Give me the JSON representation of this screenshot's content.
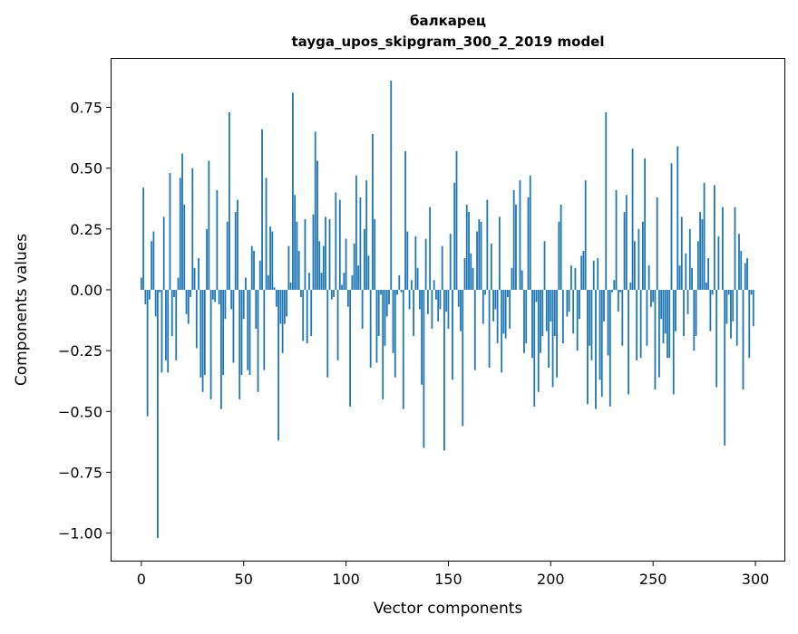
{
  "chart_data": {
    "type": "bar",
    "title": "балкарец",
    "subtitle": "tayga_upos_skipgram_300_2_2019 model",
    "xlabel": "Vector components",
    "ylabel": "Components values",
    "xlim": [
      -15,
      314.6
    ],
    "ylim": [
      -1.117,
      0.953
    ],
    "xticks": [
      0,
      50,
      100,
      150,
      200,
      250,
      300
    ],
    "xtick_labels": [
      "0",
      "50",
      "100",
      "150",
      "200",
      "250",
      "300"
    ],
    "yticks": [
      -1.0,
      -0.75,
      -0.5,
      -0.25,
      0.0,
      0.25,
      0.5,
      0.75
    ],
    "ytick_labels": [
      "−1.00",
      "−0.75",
      "−0.50",
      "−0.25",
      "0.00",
      "0.25",
      "0.50",
      "0.75"
    ],
    "grid": false,
    "bar_color": "#1f77b4",
    "bar_width": 0.8,
    "values": [
      0.05,
      0.42,
      -0.06,
      -0.52,
      -0.04,
      0.2,
      0.24,
      -0.11,
      -1.02,
      -0.01,
      -0.34,
      0.3,
      -0.29,
      -0.34,
      0.48,
      -0.19,
      -0.03,
      -0.29,
      0.05,
      0.46,
      0.56,
      0.35,
      -0.1,
      -0.14,
      -0.03,
      0.5,
      0.09,
      -0.24,
      0.13,
      -0.36,
      -0.42,
      -0.35,
      0.25,
      0.53,
      -0.45,
      -0.04,
      -0.05,
      0.41,
      -0.06,
      -0.49,
      -0.35,
      -0.12,
      0.28,
      0.73,
      -0.08,
      -0.3,
      0.32,
      0.37,
      -0.45,
      -0.35,
      -0.12,
      0.05,
      -0.33,
      -0.35,
      0.18,
      0.16,
      -0.16,
      -0.42,
      0.12,
      0.66,
      -0.33,
      0.46,
      0.06,
      0.26,
      0.24,
      0.01,
      -0.07,
      -0.62,
      -0.14,
      -0.26,
      -0.14,
      -0.11,
      0.18,
      0.03,
      0.81,
      0.39,
      0.28,
      0.16,
      -0.03,
      -0.21,
      0.29,
      -0.22,
      0.07,
      -0.19,
      0.31,
      0.65,
      0.53,
      0.2,
      0.07,
      0.18,
      0.3,
      -0.36,
      0.29,
      -0.04,
      -0.03,
      0.4,
      -0.29,
      0.37,
      0.02,
      0.07,
      0.21,
      -0.07,
      -0.48,
      0.06,
      0.19,
      0.47,
      0.1,
      0.38,
      -0.16,
      0.25,
      0.45,
      0.14,
      -0.32,
      0.64,
      0.29,
      -0.3,
      -0.19,
      -0.02,
      -0.45,
      -0.23,
      -0.11,
      -0.06,
      0.86,
      -0.26,
      -0.36,
      -0.02,
      0.06,
      -0.01,
      -0.49,
      0.57,
      0.24,
      -0.08,
      0.04,
      -0.19,
      0.22,
      0.09,
      -0.08,
      -0.39,
      -0.65,
      0.21,
      -0.1,
      0.34,
      -0.16,
      0.04,
      -0.04,
      -0.13,
      -0.08,
      0.18,
      -0.66,
      -0.09,
      -0.16,
      0.23,
      -0.37,
      0.44,
      0.57,
      -0.07,
      -0.17,
      -0.56,
      0.13,
      0.35,
      0.32,
      0.15,
      0.09,
      -0.33,
      0.24,
      0.29,
      0.28,
      -0.14,
      -0.02,
      0.37,
      -0.32,
      0.19,
      -0.13,
      -0.08,
      -0.22,
      0.3,
      -0.34,
      -0.18,
      -0.2,
      -0.03,
      -0.16,
      0.09,
      0.41,
      0.35,
      0.0,
      0.45,
      0.08,
      -0.26,
      -0.22,
      0.38,
      0.47,
      -0.28,
      -0.48,
      -0.05,
      -0.42,
      -0.26,
      -0.19,
      0.2,
      -0.17,
      -0.32,
      -0.13,
      -0.4,
      -0.19,
      -0.36,
      0.28,
      0.35,
      -0.22,
      0.0,
      -0.11,
      -0.09,
      0.1,
      -0.18,
      0.09,
      -0.25,
      -0.12,
      0.14,
      0.16,
      0.45,
      -0.47,
      -0.23,
      -0.29,
      0.12,
      -0.49,
      0.13,
      -0.37,
      -0.44,
      -0.13,
      0.73,
      -0.27,
      -0.48,
      -0.01,
      0.04,
      0.41,
      -0.09,
      -0.01,
      -0.23,
      0.32,
      0.39,
      -0.43,
      0.03,
      0.58,
      0.2,
      -0.29,
      0.25,
      -0.28,
      0.28,
      0.54,
      -0.23,
      0.1,
      -0.07,
      -0.05,
      -0.41,
      0.38,
      -0.36,
      -0.12,
      -0.22,
      -0.18,
      -0.28,
      -0.28,
      0.52,
      -0.43,
      -0.17,
      0.59,
      0.1,
      0.3,
      -0.19,
      0.15,
      -0.1,
      0.25,
      0.09,
      -0.25,
      -0.19,
      0.2,
      0.32,
      0.29,
      0.44,
      0.03,
      0.13,
      -0.17,
      -0.02,
      0.43,
      -0.4,
      0.22,
      0.0,
      0.34,
      -0.64,
      -0.14,
      -0.02,
      -0.2,
      -0.13,
      0.34,
      -0.23,
      0.23,
      0.16,
      -0.41,
      0.11,
      0.13,
      -0.28,
      -0.02,
      -0.15
    ]
  }
}
